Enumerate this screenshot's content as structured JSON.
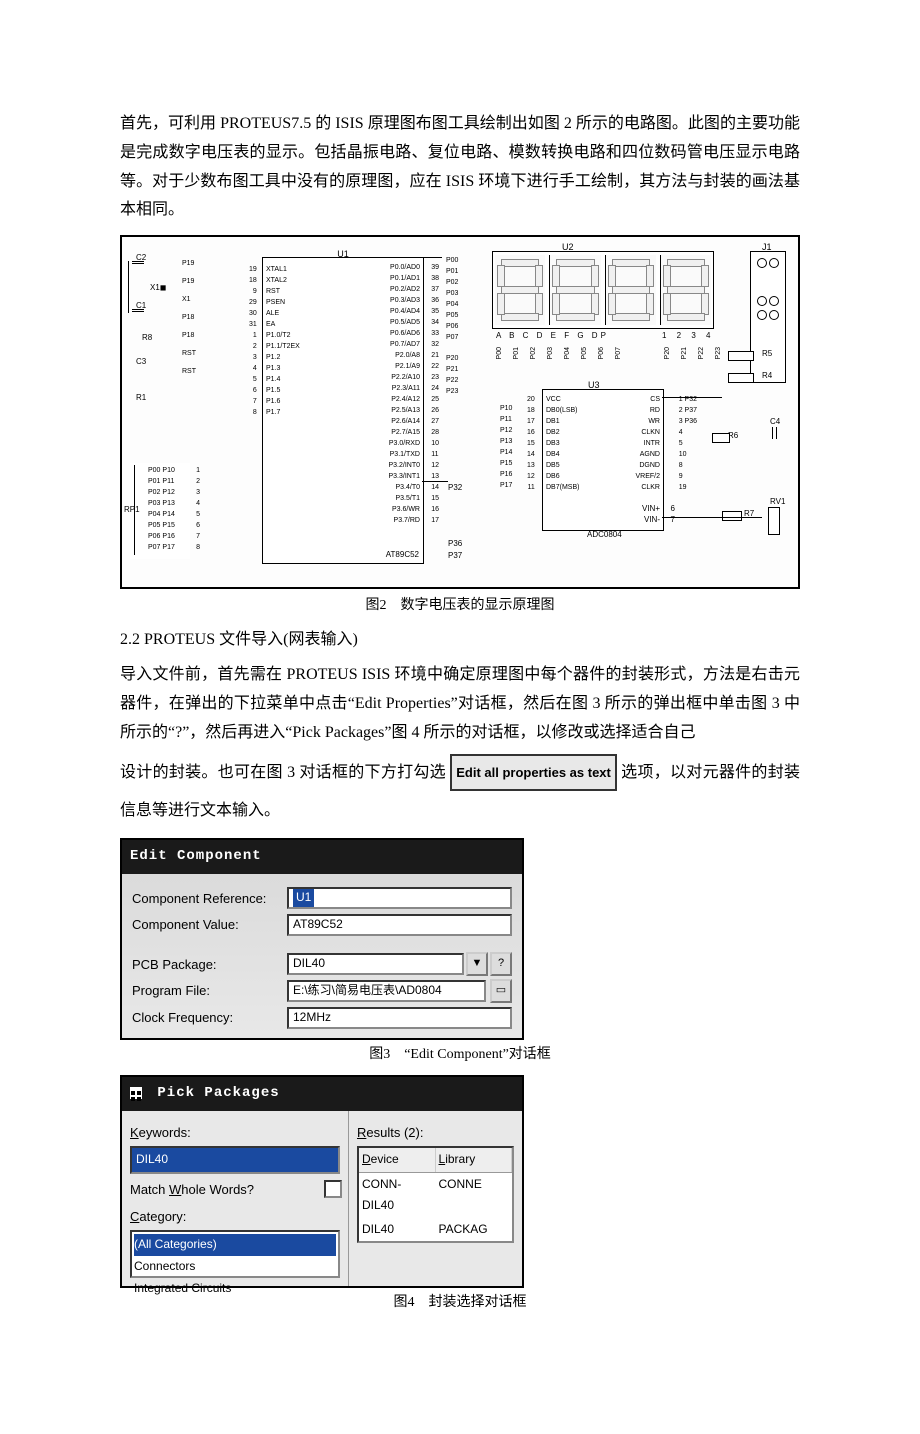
{
  "paragraph1": "首先，可利用 PROTEUS7.5 的 ISIS 原理图布图工具绘制出如图 2 所示的电路图。此图的主要功能是完成数字电压表的显示。包括晶振电路、复位电路、模数转换电路和四位数码管电压显示电路等。对于少数布图工具中没有的原理图，应在 ISIS 环境下进行手工绘制，其方法与封装的画法基本相同。",
  "figure2": {
    "caption": "图2　数字电压表的显示原理图",
    "u1": {
      "ref": "U1",
      "part": "AT89C52",
      "left_pins": [
        "XTAL1",
        "XTAL2",
        "RST",
        "PSEN",
        "ALE",
        "EA",
        "P1.0/T2",
        "P1.1/T2EX",
        "P1.2",
        "P1.3",
        "P1.4",
        "P1.5",
        "P1.6",
        "P1.7"
      ],
      "left_nums": [
        "19",
        "18",
        "9",
        "29",
        "30",
        "31",
        "1",
        "2",
        "3",
        "4",
        "5",
        "6",
        "7",
        "8"
      ],
      "right_pins": [
        "P0.0/AD0",
        "P0.1/AD1",
        "P0.2/AD2",
        "P0.3/AD3",
        "P0.4/AD4",
        "P0.5/AD5",
        "P0.6/AD6",
        "P0.7/AD7",
        "P2.0/A8",
        "P2.1/A9",
        "P2.2/A10",
        "P2.3/A11",
        "P2.4/A12",
        "P2.5/A13",
        "P2.6/A14",
        "P2.7/A15",
        "P3.0/RXD",
        "P3.1/TXD",
        "P3.2/INT0",
        "P3.3/INT1",
        "P3.4/T0",
        "P3.5/T1",
        "P3.6/WR",
        "P3.7/RD"
      ],
      "right_nums": [
        "39",
        "38",
        "37",
        "36",
        "35",
        "34",
        "33",
        "32",
        "21",
        "22",
        "23",
        "24",
        "25",
        "26",
        "27",
        "28",
        "10",
        "11",
        "12",
        "13",
        "14",
        "15",
        "16",
        "17"
      ]
    },
    "u2": {
      "ref": "U2",
      "footer_letters": "A B C D E F G DP",
      "footer_nums": "1  2  3  4"
    },
    "u3": {
      "ref": "U3",
      "part": "ADC0804",
      "left_pins": [
        "VCC",
        "DB0(LSB)",
        "DB1",
        "DB2",
        "DB3",
        "DB4",
        "DB5",
        "DB6",
        "DB7(MSB)"
      ],
      "left_nums": [
        "20",
        "18",
        "17",
        "16",
        "15",
        "14",
        "13",
        "12",
        "11"
      ],
      "right_pins": [
        "CS",
        "RD",
        "WR",
        "CLKN",
        "INTR",
        "AGND",
        "DGND",
        "VREF/2",
        "CLKR"
      ],
      "right_nums": [
        "1 P32",
        "2 P37",
        "3 P36",
        "4",
        "5",
        "10",
        "8",
        "9",
        "19"
      ],
      "bottom": [
        "VIN+",
        "VIN-"
      ],
      "bottom_nums": [
        "6",
        "7"
      ]
    },
    "j1": {
      "ref": "J1"
    },
    "left_nets": [
      "P19",
      "P19",
      "X1",
      "P18",
      "P18",
      "RST",
      "RST"
    ],
    "left_comps": [
      "C2",
      "C1",
      "R8",
      "C3",
      "R1"
    ],
    "rp1": {
      "ref": "RP1",
      "rows": [
        "P00 P10",
        "P01 P11",
        "P02 P12",
        "P03 P13",
        "P04 P14",
        "P05 P15",
        "P06 P16",
        "P07 P17"
      ],
      "nums": [
        "1",
        "2",
        "3",
        "4",
        "5",
        "6",
        "7",
        "8"
      ]
    },
    "mid_nets_top": [
      "P00",
      "P01",
      "P02",
      "P03",
      "P04",
      "P05",
      "P06",
      "P07"
    ],
    "mid_nets_p2": [
      "P20",
      "P21",
      "P22",
      "P23"
    ],
    "seg_nets": [
      "P00",
      "P01",
      "P02",
      "P03",
      "P04",
      "P05",
      "P06",
      "P07"
    ],
    "dig_nets": [
      "P20",
      "P21",
      "P22",
      "P23"
    ],
    "p3_nets": [
      "P32",
      "P36",
      "P37"
    ],
    "adc_in": [
      "P10",
      "P11",
      "P12",
      "P13",
      "P14",
      "P15",
      "P16",
      "P17"
    ],
    "right_comps": [
      "R5",
      "R4",
      "R6",
      "C4",
      "R7",
      "RV1"
    ]
  },
  "section22": "2.2 PROTEUS 文件导入(网表输入)",
  "paragraph2_a": "导入文件前，首先需在 PROTEUS ISIS 环境中确定原理图中每个器件的封装形式，方法是右击元器件，在弹出的下拉菜单中点击“Edit Properties”对话框，然后在图 3 所示的弹出框中单击图 3 中所示的“?”，然后再进入“Pick Packages”图 4 所示的对话框，以修改或选择适合自己",
  "paragraph2_b_pre": "设计的封装。也可在图 3 对话框的下方打勾选 ",
  "inline_widget": "Edit all properties as text",
  "paragraph2_b_post": " 选项，以对元器件的封装信息等进行文本输入。",
  "dialog3": {
    "title": "Edit Component",
    "rows": [
      {
        "label": "Component Reference:",
        "value": "U1",
        "highlight": true
      },
      {
        "label": "Component Value:",
        "value": "AT89C52"
      },
      {
        "label": "PCB Package:",
        "value": "DIL40",
        "dropdown": true,
        "question": true
      },
      {
        "label": "Program File:",
        "value": "E:\\练习\\简易电压表\\AD0804",
        "filebtn": true
      },
      {
        "label": "Clock Frequency:",
        "value": "12MHz"
      }
    ],
    "caption": "图3　“Edit Component”对话框"
  },
  "dialog4": {
    "title": "Pick Packages",
    "icon": "grid-icon",
    "left": {
      "keywords_label": "Keywords:",
      "keywords_value": "DIL40",
      "match_label": "Match Whole Words?",
      "category_label": "Category:",
      "categories": [
        "(All Categories)",
        "Connectors",
        "Integrated Circuits"
      ]
    },
    "right": {
      "results_label": "Results (2):",
      "headers": [
        "Device",
        "Library"
      ],
      "rows": [
        [
          "CONN-DIL40",
          "CONNE"
        ],
        [
          "DIL40",
          "PACKAG"
        ]
      ]
    },
    "caption": "图4　封装选择对话框"
  }
}
